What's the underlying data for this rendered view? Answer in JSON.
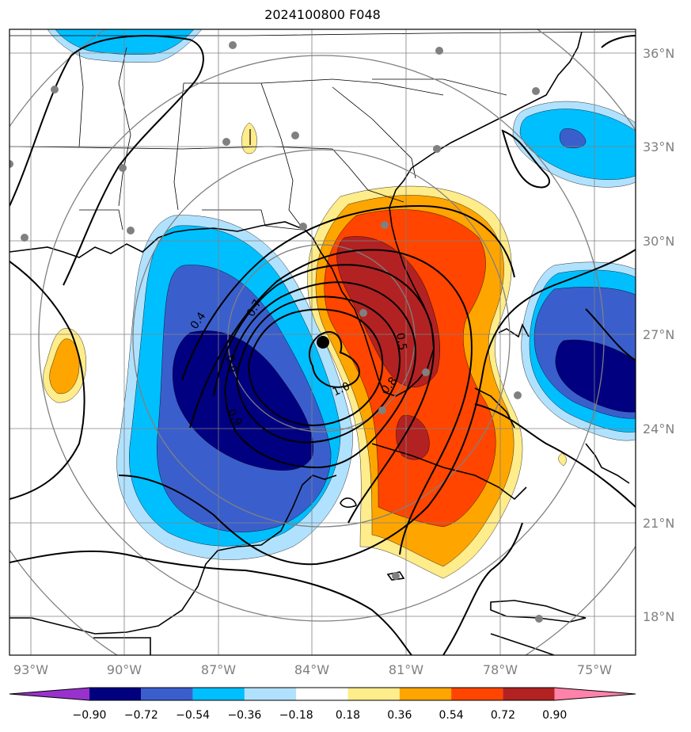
{
  "title": "2024100800 F048",
  "map": {
    "lat_labels": [
      "36°N",
      "33°N",
      "30°N",
      "27°N",
      "24°N",
      "21°N",
      "18°N"
    ],
    "lon_labels": [
      "93°W",
      "90°W",
      "87°W",
      "84°W",
      "81°W",
      "78°W",
      "75°W"
    ],
    "contour_labels": [
      "0.4",
      "0.7",
      "0.9",
      "0.9",
      "1.0",
      "0.8",
      "0.5"
    ],
    "storm_center": {
      "lat": 26.7,
      "lon": -83.7
    },
    "colors": {
      "neg_090_plus": "#000080",
      "neg_072": "#3a5fcd",
      "neg_054": "#00bfff",
      "neg_036": "#b0e2ff",
      "pos_018": "#ffec8b",
      "pos_036": "#ffa500",
      "pos_054": "#ff4500",
      "pos_072": "#b22222",
      "grid": "#808080",
      "stations": "#808080"
    }
  },
  "colorbar": {
    "ticks": [
      "−0.90",
      "−0.72",
      "−0.54",
      "−0.36",
      "−0.18",
      "0.18",
      "0.36",
      "0.54",
      "0.72",
      "0.90"
    ],
    "colors": [
      "#9932cc",
      "#000080",
      "#3a5fcd",
      "#00bfff",
      "#b0e2ff",
      "#ffffff",
      "#ffec8b",
      "#ffa500",
      "#ff4500",
      "#b22222",
      "#ff82ab"
    ]
  }
}
